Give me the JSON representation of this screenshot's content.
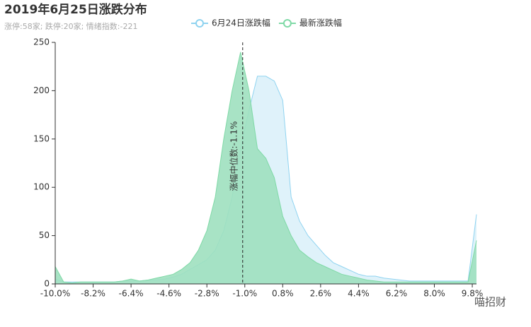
{
  "chart_data": {
    "type": "area",
    "title": "2019年6月25日涨跌分布",
    "subtitle": "涨停:58家; 跌停:20家; 情绪指数:-221",
    "watermark": "喵招财",
    "x": [
      -10,
      -9.6,
      -9.2,
      -8.8,
      -8.4,
      -8,
      -7.6,
      -7.2,
      -6.8,
      -6.4,
      -6,
      -5.6,
      -5.2,
      -4.8,
      -4.4,
      -4,
      -3.6,
      -3.2,
      -2.8,
      -2.4,
      -2,
      -1.6,
      -1.2,
      -0.8,
      -0.4,
      0,
      0.4,
      0.8,
      1.2,
      1.6,
      2,
      2.4,
      2.8,
      3.2,
      3.6,
      4,
      4.4,
      4.8,
      5.2,
      5.6,
      6,
      6.4,
      6.8,
      7.2,
      7.6,
      8,
      8.4,
      8.8,
      9.2,
      9.6,
      10
    ],
    "series": [
      {
        "name": "6月24日涨跌幅",
        "color": "#8fd3f0",
        "fill": "#dcf1fa",
        "values": [
          5,
          2,
          2,
          2,
          2,
          2,
          2,
          2,
          3,
          3,
          3,
          4,
          4,
          5,
          7,
          10,
          15,
          20,
          25,
          35,
          55,
          90,
          140,
          180,
          215,
          215,
          210,
          190,
          90,
          65,
          50,
          40,
          30,
          22,
          18,
          14,
          10,
          8,
          8,
          6,
          5,
          4,
          3,
          3,
          3,
          3,
          3,
          3,
          3,
          3,
          72
        ]
      },
      {
        "name": "最新涨跌幅",
        "color": "#7fd9a6",
        "fill": "#9fe0bf",
        "values": [
          18,
          2,
          1,
          2,
          2,
          2,
          2,
          2,
          3,
          5,
          3,
          4,
          6,
          8,
          10,
          15,
          22,
          35,
          55,
          90,
          150,
          200,
          240,
          200,
          140,
          130,
          110,
          70,
          50,
          35,
          28,
          22,
          18,
          14,
          10,
          8,
          6,
          4,
          3,
          2,
          2,
          2,
          2,
          2,
          2,
          2,
          2,
          2,
          2,
          2,
          45
        ]
      }
    ],
    "xlim": [
      -10,
      10
    ],
    "xticks": [
      {
        "value": -10,
        "label": "-10.0%"
      },
      {
        "value": -8.2,
        "label": "-8.2%"
      },
      {
        "value": -6.4,
        "label": "-6.4%"
      },
      {
        "value": -4.6,
        "label": "-4.6%"
      },
      {
        "value": -2.8,
        "label": "-2.8%"
      },
      {
        "value": -1,
        "label": "-1.0%"
      },
      {
        "value": 0.8,
        "label": "0.8%"
      },
      {
        "value": 2.6,
        "label": "2.6%"
      },
      {
        "value": 4.4,
        "label": "4.4%"
      },
      {
        "value": 6.2,
        "label": "6.2%"
      },
      {
        "value": 8,
        "label": "8.0%"
      },
      {
        "value": 9.8,
        "label": "9.8%"
      }
    ],
    "ylim": [
      0,
      250
    ],
    "yticks": [
      0,
      50,
      100,
      150,
      200,
      250
    ],
    "median": -1.1,
    "median_label": "涨幅中位数:-1.1%"
  }
}
